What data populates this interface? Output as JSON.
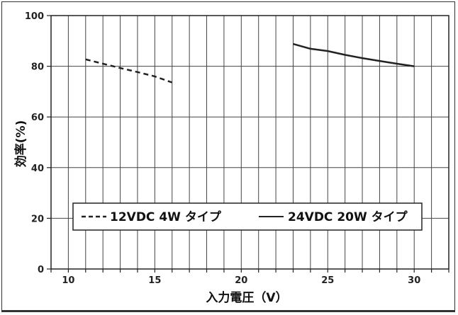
{
  "chart_data": {
    "type": "line",
    "xlabel": "入力電圧（V）",
    "ylabel": "効率(%)",
    "xlim": [
      9,
      32
    ],
    "ylim": [
      0,
      100
    ],
    "x_ticks": [
      10,
      15,
      20,
      25,
      30
    ],
    "y_ticks": [
      0,
      20,
      40,
      60,
      80,
      100
    ],
    "grid": true,
    "legend_position": "bottom-center",
    "series": [
      {
        "name": "12VDC 4W タイプ",
        "style": "dashed",
        "color": "#222222",
        "points": [
          [
            11,
            82.7
          ],
          [
            12,
            81.0
          ],
          [
            13,
            79.3
          ],
          [
            14,
            77.7
          ],
          [
            15,
            76.0
          ],
          [
            16,
            73.6
          ]
        ]
      },
      {
        "name": "24VDC 20W タイプ",
        "style": "solid",
        "color": "#222222",
        "points": [
          [
            23,
            88.8
          ],
          [
            24,
            86.9
          ],
          [
            25,
            86.0
          ],
          [
            26,
            84.5
          ],
          [
            27,
            83.2
          ],
          [
            28,
            82.1
          ],
          [
            29,
            81.0
          ],
          [
            30,
            80.0
          ]
        ]
      }
    ]
  }
}
